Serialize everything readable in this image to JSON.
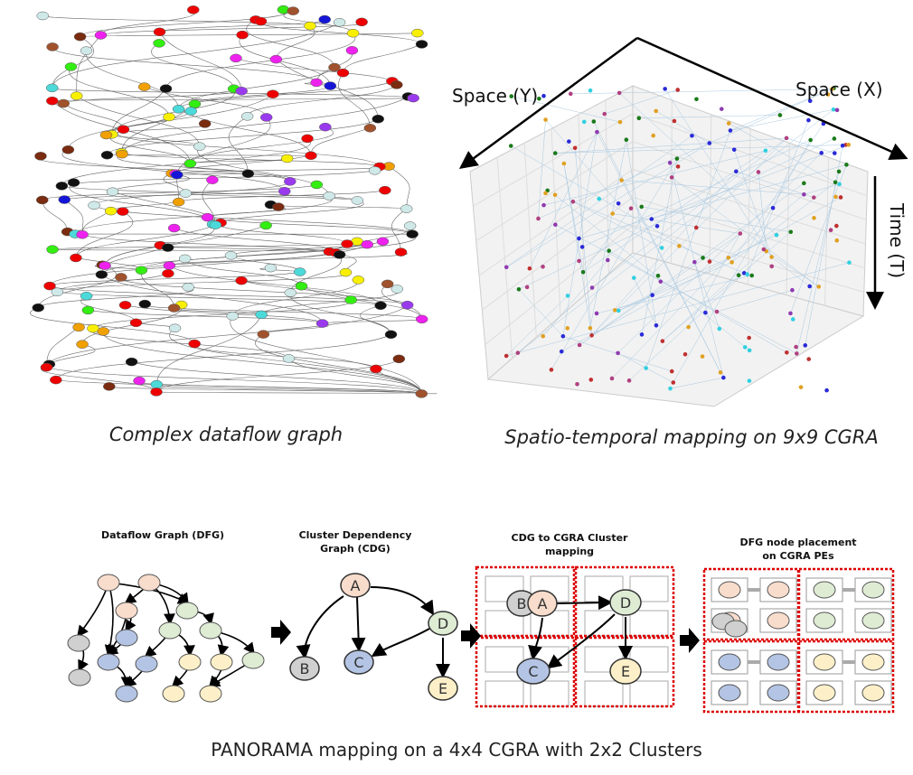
{
  "panels": {
    "complex_dfg": {
      "caption": "Complex dataflow graph"
    },
    "spatio_temporal": {
      "caption": "Spatio-temporal mapping on 9x9 CGRA",
      "axes": {
        "y": "Space (Y)",
        "x": "Space (X)",
        "t": "Time (T)"
      }
    },
    "panorama": {
      "caption": "PANORAMA mapping on a 4x4 CGRA with 2x2 Clusters",
      "steps": [
        {
          "title_lines": [
            "Dataflow Graph (DFG)"
          ]
        },
        {
          "title_lines": [
            "Cluster Dependency",
            "Graph (CDG)"
          ],
          "nodes": [
            "A",
            "B",
            "C",
            "D",
            "E"
          ]
        },
        {
          "title_lines": [
            "CDG  to CGRA Cluster",
            "mapping"
          ],
          "nodes": [
            "A",
            "B",
            "C",
            "D",
            "E"
          ]
        },
        {
          "title_lines": [
            "DFG node placement",
            "on CGRA PEs"
          ]
        }
      ]
    }
  }
}
